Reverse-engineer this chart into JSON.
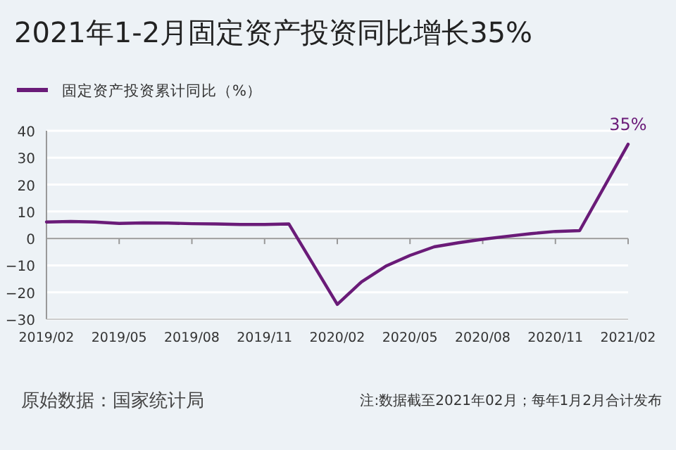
{
  "chart_data": {
    "type": "line",
    "title": "2021年1-2月固定资产投资同比增长35%",
    "x": [
      "2019-02",
      "2019-03",
      "2019-04",
      "2019-05",
      "2019-06",
      "2019-07",
      "2019-08",
      "2019-09",
      "2019-10",
      "2019-11",
      "2019-12",
      "2020-02",
      "2020-03",
      "2020-04",
      "2020-05",
      "2020-06",
      "2020-07",
      "2020-08",
      "2020-09",
      "2020-10",
      "2020-11",
      "2020-12",
      "2021-02"
    ],
    "series": [
      {
        "name": "固定资产投资累计同比（%）",
        "color": "#6a1b78",
        "values": [
          6.1,
          6.3,
          6.1,
          5.6,
          5.8,
          5.7,
          5.5,
          5.4,
          5.2,
          5.2,
          5.4,
          -24.5,
          -16.1,
          -10.3,
          -6.3,
          -3.1,
          -1.6,
          -0.3,
          0.8,
          1.8,
          2.6,
          2.9,
          35.0
        ]
      }
    ],
    "xlim": [
      "2019-02",
      "2021-02"
    ],
    "xticks": [
      {
        "value": "2019-02",
        "label": "2019/02"
      },
      {
        "value": "2019-05",
        "label": "2019/05"
      },
      {
        "value": "2019-08",
        "label": "2019/08"
      },
      {
        "value": "2019-11",
        "label": "2019/11"
      },
      {
        "value": "2020-02",
        "label": "2020/02"
      },
      {
        "value": "2020-05",
        "label": "2020/05"
      },
      {
        "value": "2020-08",
        "label": "2020/08"
      },
      {
        "value": "2020-11",
        "label": "2020/11"
      },
      {
        "value": "2021-02",
        "label": "2021/02"
      }
    ],
    "ylim": [
      -30,
      40
    ],
    "yticks": [
      -30,
      -20,
      -10,
      0,
      10,
      20,
      30,
      40
    ],
    "grid": "y",
    "legend": "top left",
    "marker": "none",
    "line_style": "solid",
    "annotations": [
      {
        "text": "35%",
        "x": "2021-02",
        "y": 35
      },
      "原始数据：国家统计局",
      "注:数据截至2021年02月；每年1月2月合计发布"
    ]
  }
}
